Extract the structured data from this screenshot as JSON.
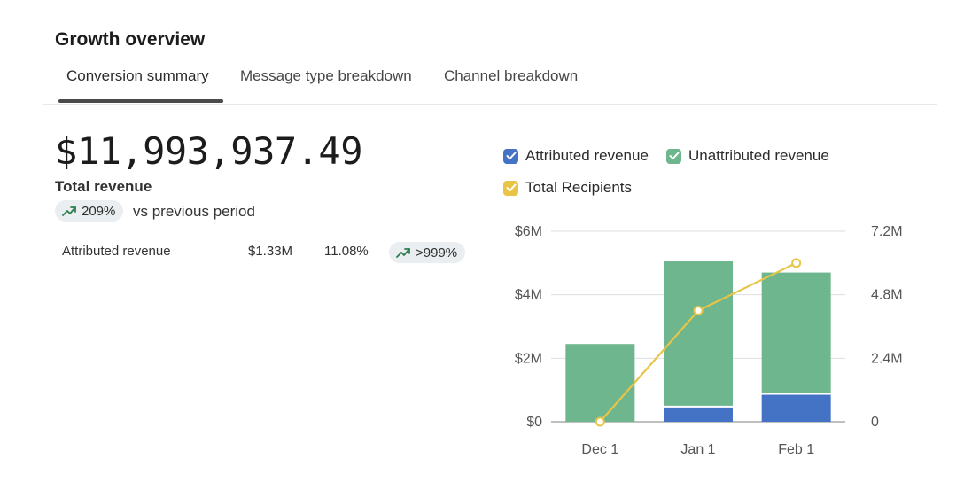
{
  "header": {
    "title": "Growth overview"
  },
  "tabs": [
    {
      "label": "Conversion summary",
      "active": true
    },
    {
      "label": "Message type breakdown",
      "active": false
    },
    {
      "label": "Channel breakdown",
      "active": false
    }
  ],
  "summary": {
    "total_value": "$11,993,937.49",
    "total_label": "Total revenue",
    "change_pct": "209%",
    "change_label": "vs previous period",
    "trend_icon": "trending-up-icon"
  },
  "breakdown_row": {
    "label": "Attributed revenue",
    "value": "$1.33M",
    "share": "11.08%",
    "change": ">999%"
  },
  "colors": {
    "attributed": "#4472c4",
    "unattributed": "#6db68e",
    "recipients": "#e8c547",
    "trend_green": "#2e7d4f"
  },
  "chart_data": {
    "type": "bar",
    "categories": [
      "Dec 1",
      "Jan 1",
      "Feb 1"
    ],
    "series": [
      {
        "name": "Attributed revenue",
        "type": "bar",
        "stack": "revenue",
        "axis": "left",
        "values": [
          0,
          0.45,
          0.85
        ]
      },
      {
        "name": "Unattributed revenue",
        "type": "bar",
        "stack": "revenue",
        "axis": "left",
        "values": [
          2.45,
          4.6,
          3.85
        ]
      },
      {
        "name": "Total Recipients",
        "type": "line",
        "axis": "right",
        "values": [
          0,
          4.2,
          6.0
        ]
      }
    ],
    "y_left": {
      "ticks": [
        "$0",
        "$2M",
        "$4M",
        "$6M"
      ],
      "tick_values": [
        0,
        2,
        4,
        6
      ],
      "ylim": [
        0,
        6
      ]
    },
    "y_right": {
      "ticks": [
        "0",
        "2.4M",
        "4.8M",
        "7.2M"
      ],
      "tick_values": [
        0,
        2.4,
        4.8,
        7.2
      ],
      "ylim": [
        0,
        7.2
      ]
    },
    "grid": true,
    "legend_position": "top"
  }
}
